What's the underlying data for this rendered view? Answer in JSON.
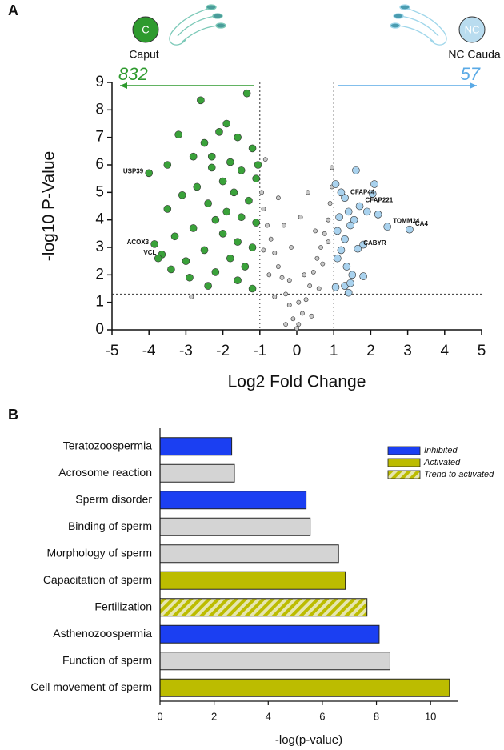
{
  "chart_data": [
    {
      "type": "scatter",
      "panel": "A",
      "xlabel": "Log2 Fold Change",
      "ylabel": "-log10 P-Value",
      "xlim": [
        -5,
        5
      ],
      "ylim": [
        0,
        9
      ],
      "xticks": [
        -5,
        -4,
        -3,
        -2,
        -1,
        0,
        1,
        2,
        3,
        4,
        5
      ],
      "yticks": [
        0,
        1,
        2,
        3,
        4,
        5,
        6,
        7,
        8,
        9
      ],
      "thresholds": {
        "x": [
          -1,
          1
        ],
        "y": 1.3
      },
      "groups": [
        {
          "badge": "C",
          "label": "Caput",
          "count": 832,
          "color": "#2e9a2e",
          "direction": "left"
        },
        {
          "badge": "NC",
          "label": "NC Cauda",
          "count": 57,
          "color": "#5aaae6",
          "direction": "right"
        }
      ],
      "series": [
        {
          "color": "#3aa23a",
          "size": 4.5,
          "x": [
            -4.0,
            -3.85,
            -3.65,
            -2.6,
            -1.35,
            -3.2,
            -1.9,
            -2.1,
            -1.6,
            -2.5,
            -1.2,
            -3.5,
            -2.8,
            -1.8,
            -2.3,
            -1.5,
            -1.1,
            -2.0,
            -2.7,
            -3.1,
            -1.7,
            -1.3,
            -2.4,
            -1.9,
            -3.5,
            -2.2,
            -1.5,
            -1.1,
            -2.8,
            -3.3,
            -2.0,
            -1.6,
            -1.2,
            -2.5,
            -3.0,
            -1.8,
            -1.4,
            -2.2,
            -2.9,
            -1.6,
            -1.2,
            -2.4,
            -3.75,
            -3.4,
            -2.3,
            -1.05
          ],
          "values": [
            5.7,
            3.12,
            2.74,
            8.35,
            8.6,
            7.1,
            7.5,
            7.2,
            7.0,
            6.8,
            6.6,
            6.0,
            6.3,
            6.1,
            5.9,
            5.8,
            5.5,
            5.4,
            5.2,
            4.9,
            5.0,
            4.7,
            4.6,
            4.3,
            4.4,
            4.0,
            4.1,
            3.9,
            3.7,
            3.4,
            3.5,
            3.2,
            3.0,
            2.9,
            2.5,
            2.6,
            2.3,
            2.1,
            1.9,
            1.8,
            1.5,
            1.6,
            2.6,
            2.2,
            6.3,
            6.0
          ],
          "point_labels": [
            "USP39",
            "ACOX3",
            "VCL",
            null,
            null,
            null,
            null,
            null,
            null,
            null,
            null,
            null,
            null,
            null,
            null,
            null,
            null,
            null,
            null,
            null,
            null,
            null,
            null,
            null,
            null,
            null,
            null,
            null,
            null,
            null,
            null,
            null,
            null,
            null,
            null,
            null,
            null,
            null,
            null,
            null,
            null,
            null,
            null,
            null,
            null,
            null
          ]
        },
        {
          "color": "#c8c8c8",
          "size": 2.6,
          "x": [
            0,
            0.05,
            -0.1,
            0.15,
            -0.2,
            0.25,
            -0.3,
            0.35,
            -0.4,
            0.45,
            -0.5,
            0.55,
            -0.6,
            0.65,
            -0.7,
            0.75,
            -0.8,
            0.85,
            -0.9,
            0.9,
            -0.95,
            0.95,
            -0.85,
            0.95,
            0.05,
            -0.3,
            0.4,
            -0.6,
            0.6,
            -0.75,
            0.7,
            -0.9,
            0.85,
            -0.35,
            0.2,
            -0.5,
            0.3,
            -0.15,
            0.1,
            -2.85,
            -0.2,
            0.5
          ],
          "values": [
            0.05,
            0.2,
            0.4,
            0.6,
            0.9,
            1.1,
            1.3,
            1.6,
            1.9,
            2.1,
            2.3,
            2.6,
            2.8,
            3.0,
            3.3,
            3.5,
            3.8,
            4.0,
            4.4,
            4.6,
            5.0,
            5.2,
            6.2,
            5.9,
            1.0,
            0.2,
            0.5,
            1.2,
            1.5,
            2.0,
            2.4,
            2.9,
            3.2,
            3.8,
            2.0,
            4.8,
            5.0,
            3.0,
            4.1,
            1.2,
            1.8,
            3.6
          ]
        },
        {
          "color": "#a9d2ee",
          "size": 4.5,
          "x": [
            1.3,
            1.7,
            2.45,
            3.05,
            1.65,
            1.6,
            1.05,
            2.1,
            2.05,
            1.2,
            1.4,
            1.9,
            2.2,
            1.55,
            1.15,
            1.1,
            1.3,
            1.45,
            1.8,
            1.2,
            1.1,
            1.35,
            1.5,
            1.8,
            1.3,
            1.45,
            1.05,
            1.4
          ],
          "values": [
            4.8,
            4.5,
            3.75,
            3.65,
            2.95,
            5.8,
            5.3,
            5.3,
            4.95,
            5.0,
            4.3,
            4.3,
            4.2,
            4.0,
            4.1,
            3.6,
            3.3,
            3.8,
            3.1,
            2.9,
            2.6,
            2.3,
            2.0,
            1.95,
            1.6,
            1.7,
            1.55,
            1.35
          ],
          "point_labels": [
            "CFAP44",
            "CFAP221",
            "TOMM34",
            "CA4",
            "CABYR",
            null,
            null,
            null,
            null,
            null,
            null,
            null,
            null,
            null,
            null,
            null,
            null,
            null,
            null,
            null,
            null,
            null,
            null,
            null,
            null,
            null,
            null,
            null
          ]
        }
      ]
    },
    {
      "type": "hbar",
      "panel": "B",
      "xlabel": "-log(p-value)",
      "xlim": [
        0,
        11
      ],
      "xticks": [
        0,
        2,
        4,
        6,
        8,
        10
      ],
      "categories": [
        "Teratozoospermia",
        "Acrosome reaction",
        "Sperm disorder",
        "Binding of sperm",
        "Morphology of sperm",
        "Capacitation of sperm",
        "Fertilization",
        "Asthenozoospermia",
        "Function of sperm",
        "Cell movement of sperm"
      ],
      "values": [
        2.65,
        2.75,
        5.4,
        5.55,
        6.6,
        6.85,
        7.65,
        8.1,
        8.5,
        10.7
      ],
      "colors": [
        "#1b3ff2",
        "#d4d4d4",
        "#1b3ff2",
        "#d4d4d4",
        "#d4d4d4",
        "#bcbc00",
        "#bcbc00",
        "#1b3ff2",
        "#d4d4d4",
        "#bcbc00"
      ],
      "hatched": [
        false,
        false,
        false,
        false,
        false,
        false,
        true,
        false,
        false,
        false
      ],
      "legend": [
        {
          "name": "Inhibited",
          "color": "#1b3ff2",
          "hatched": false
        },
        {
          "name": "Activated",
          "color": "#bcbc00",
          "hatched": false
        },
        {
          "name": "Trend to activated",
          "color": "#bcbc00",
          "hatched": true
        }
      ]
    }
  ]
}
